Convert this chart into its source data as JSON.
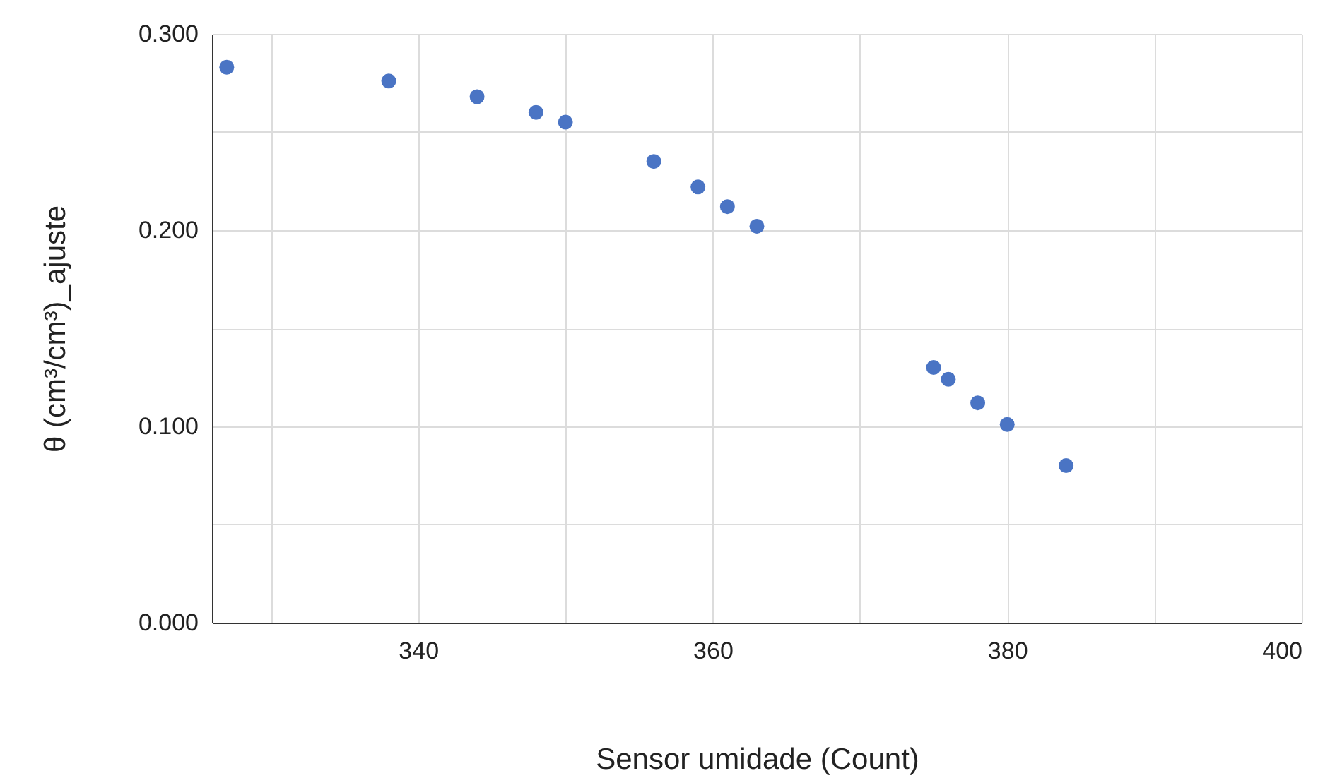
{
  "chart_data": {
    "type": "scatter",
    "xlabel": "Sensor umidade (Count)",
    "ylabel": "θ (cm³/cm³)_ajuste",
    "x": [
      327,
      338,
      344,
      348,
      350,
      356,
      359,
      361,
      363,
      375,
      376,
      378,
      380,
      384
    ],
    "series": [
      {
        "color": "#4a74c4",
        "values": [
          0.283,
          0.276,
          0.268,
          0.26,
          0.255,
          0.235,
          0.222,
          0.212,
          0.202,
          0.13,
          0.124,
          0.112,
          0.101,
          0.08
        ]
      }
    ],
    "xlim": [
      326,
      400
    ],
    "xticks": [
      {
        "value": 330,
        "label": null
      },
      340,
      {
        "value": 350,
        "label": null
      },
      360,
      {
        "value": 370,
        "label": null
      },
      380,
      {
        "value": 390,
        "label": null
      },
      400
    ],
    "ylim": [
      0,
      0.3
    ],
    "yticks": [
      {
        "value": 0,
        "label": "0.000"
      },
      {
        "value": 0.05,
        "label": null
      },
      {
        "value": 0.1,
        "label": "0.100"
      },
      {
        "value": 0.15,
        "label": null
      },
      {
        "value": 0.2,
        "label": "0.200"
      },
      {
        "value": 0.25,
        "label": null
      },
      {
        "value": 0.3,
        "label": "0.300"
      }
    ],
    "grid": true,
    "marker": "circle"
  }
}
